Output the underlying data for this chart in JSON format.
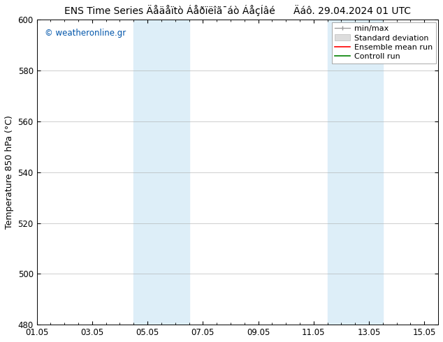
{
  "title_left": "ENS Time Series Äåäåïtò Áåðïëîã¯áò ÁåçÍâé",
  "title_right": "Äáô. 29.04.2024 01 UTC",
  "ylabel": "Temperature 850 hPa (°C)",
  "watermark": "© weatheronline.gr",
  "ylim": [
    480,
    600
  ],
  "yticks": [
    480,
    500,
    520,
    540,
    560,
    580,
    600
  ],
  "xtick_labels": [
    "01.05",
    "03.05",
    "05.05",
    "07.05",
    "09.05",
    "11.05",
    "13.05",
    "15.05"
  ],
  "xtick_positions": [
    0,
    2,
    4,
    6,
    8,
    10,
    12,
    14
  ],
  "shaded_bands": [
    {
      "start": 3.5,
      "end": 5.5,
      "color": "#ddeef8"
    },
    {
      "start": 10.5,
      "end": 12.5,
      "color": "#ddeef8"
    }
  ],
  "legend_items": [
    {
      "label": "min/max"
    },
    {
      "label": "Standard deviation"
    },
    {
      "label": "Ensemble mean run"
    },
    {
      "label": "Controll run"
    }
  ],
  "bg_color": "#ffffff",
  "plot_bg_color": "#ffffff",
  "title_fontsize": 10,
  "axis_label_fontsize": 9,
  "tick_fontsize": 8.5,
  "watermark_color": "#0055aa",
  "legend_fontsize": 8
}
